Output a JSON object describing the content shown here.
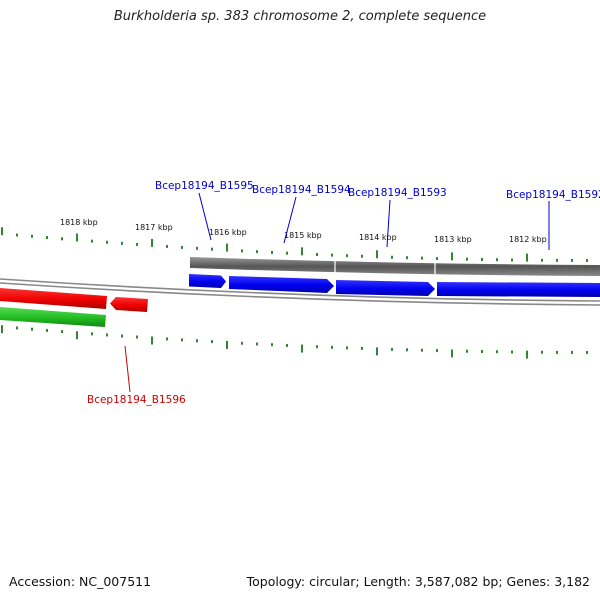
{
  "header": {
    "title": "Burkholderia sp. 383 chromosome 2, complete sequence"
  },
  "footer": {
    "accession": "Accession: NC_007511",
    "topology": "Topology: circular; Length: 3,587,082 bp; Genes: 3,182"
  },
  "ruler": {
    "tick_labels": [
      "1818 kbp",
      "1817 kbp",
      "1816 kbp",
      "1815 kbp",
      "1814 kbp",
      "1813 kbp",
      "1812 kbp"
    ]
  },
  "genes": [
    {
      "name": "Bcep18194_B1595",
      "strand": "forward",
      "color": "#0000cc"
    },
    {
      "name": "Bcep18194_B1594",
      "strand": "forward",
      "color": "#0000cc"
    },
    {
      "name": "Bcep18194_B1593",
      "strand": "forward",
      "color": "#0000cc"
    },
    {
      "name": "Bcep18194_B1592",
      "strand": "forward",
      "color": "#0000cc"
    },
    {
      "name": "Bcep18194_B1596",
      "strand": "reverse",
      "color": "#cc0000"
    }
  ],
  "colors": {
    "forward_cds": "#0000ee",
    "reverse_cds": "#ee0000",
    "rna_track": "#33cc33",
    "gene_track": "#666666",
    "backbone": "#888888",
    "ticks": "#006600"
  }
}
